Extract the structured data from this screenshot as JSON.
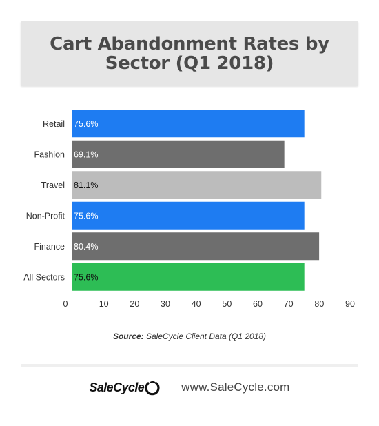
{
  "title": "Cart Abandonment Rates by Sector (Q1 2018)",
  "source": {
    "label": "Source:",
    "text": "SaleCycle Client Data (Q1 2018)"
  },
  "footer": {
    "brand": "SaleCycle",
    "website": "www.SaleCycle.com"
  },
  "chart_data": {
    "type": "bar",
    "orientation": "horizontal",
    "categories": [
      "Retail",
      "Fashion",
      "Travel",
      "Non-Profit",
      "Finance",
      "All Sectors"
    ],
    "values": [
      75.6,
      69.1,
      81.1,
      75.6,
      80.4,
      75.6
    ],
    "data_labels": [
      "75.6%",
      "69.1%",
      "81.1%",
      "75.6%",
      "80.4%",
      "75.6%"
    ],
    "colors": [
      "#1e7cf2",
      "#6e6e6e",
      "#bcbcbc",
      "#1e7cf2",
      "#6e6e6e",
      "#2dbd55"
    ],
    "label_colors": [
      "#ffffff",
      "#ffffff",
      "#111111",
      "#ffffff",
      "#ffffff",
      "#111111"
    ],
    "xlim": [
      0,
      90
    ],
    "xticks": [
      0,
      10,
      20,
      30,
      40,
      50,
      60,
      70,
      80,
      90
    ],
    "grid": false,
    "legend": "none"
  }
}
